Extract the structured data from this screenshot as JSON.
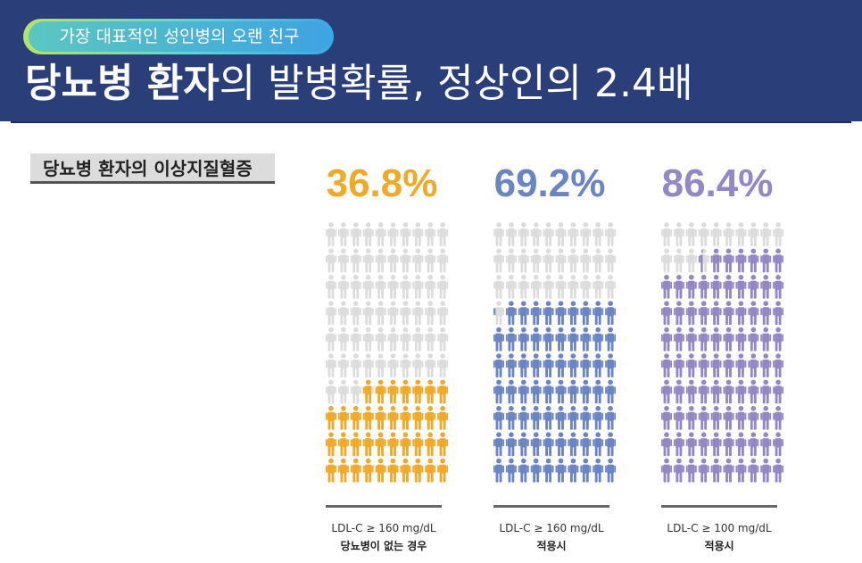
{
  "header": {
    "tag": "가장 대표적인 성인병의 오랜 친구",
    "title_bold": "당뇨병 환자",
    "title_rest": "의 발병확률, 정상인의 2.4배"
  },
  "section": {
    "label": "당뇨병 환자의 이상지질혈증"
  },
  "colors": {
    "orange": "#f2a925",
    "blue": "#6b84c6",
    "purple": "#9487c6",
    "gray": "#dcdcdc",
    "navy": "#2a3f7a"
  },
  "chart_data": {
    "type": "pictogram",
    "title": "당뇨병 환자의 이상지질혈증",
    "unit": "%",
    "grid": {
      "rows": 10,
      "cols": 10
    },
    "series": [
      {
        "name": "LDL-C ≥ 160 mg/dL 당뇨병이 없는 경우",
        "value": 36.8,
        "label": "36.8%",
        "line1": "LDL-C ≥ 160 mg/dL",
        "line2": "당뇨병이 없는 경우",
        "color": "#f2a925"
      },
      {
        "name": "LDL-C ≥ 160 mg/dL 적용시",
        "value": 69.2,
        "label": "69.2%",
        "line1": "LDL-C ≥ 160 mg/dL",
        "line2": "적용시",
        "color": "#6b84c6"
      },
      {
        "name": "LDL-C ≥ 100 mg/dL 적용시",
        "value": 86.4,
        "label": "86.4%",
        "line1": "LDL-C  ≥  100 mg/dL",
        "line2": "적용시",
        "color": "#9487c6"
      }
    ]
  }
}
